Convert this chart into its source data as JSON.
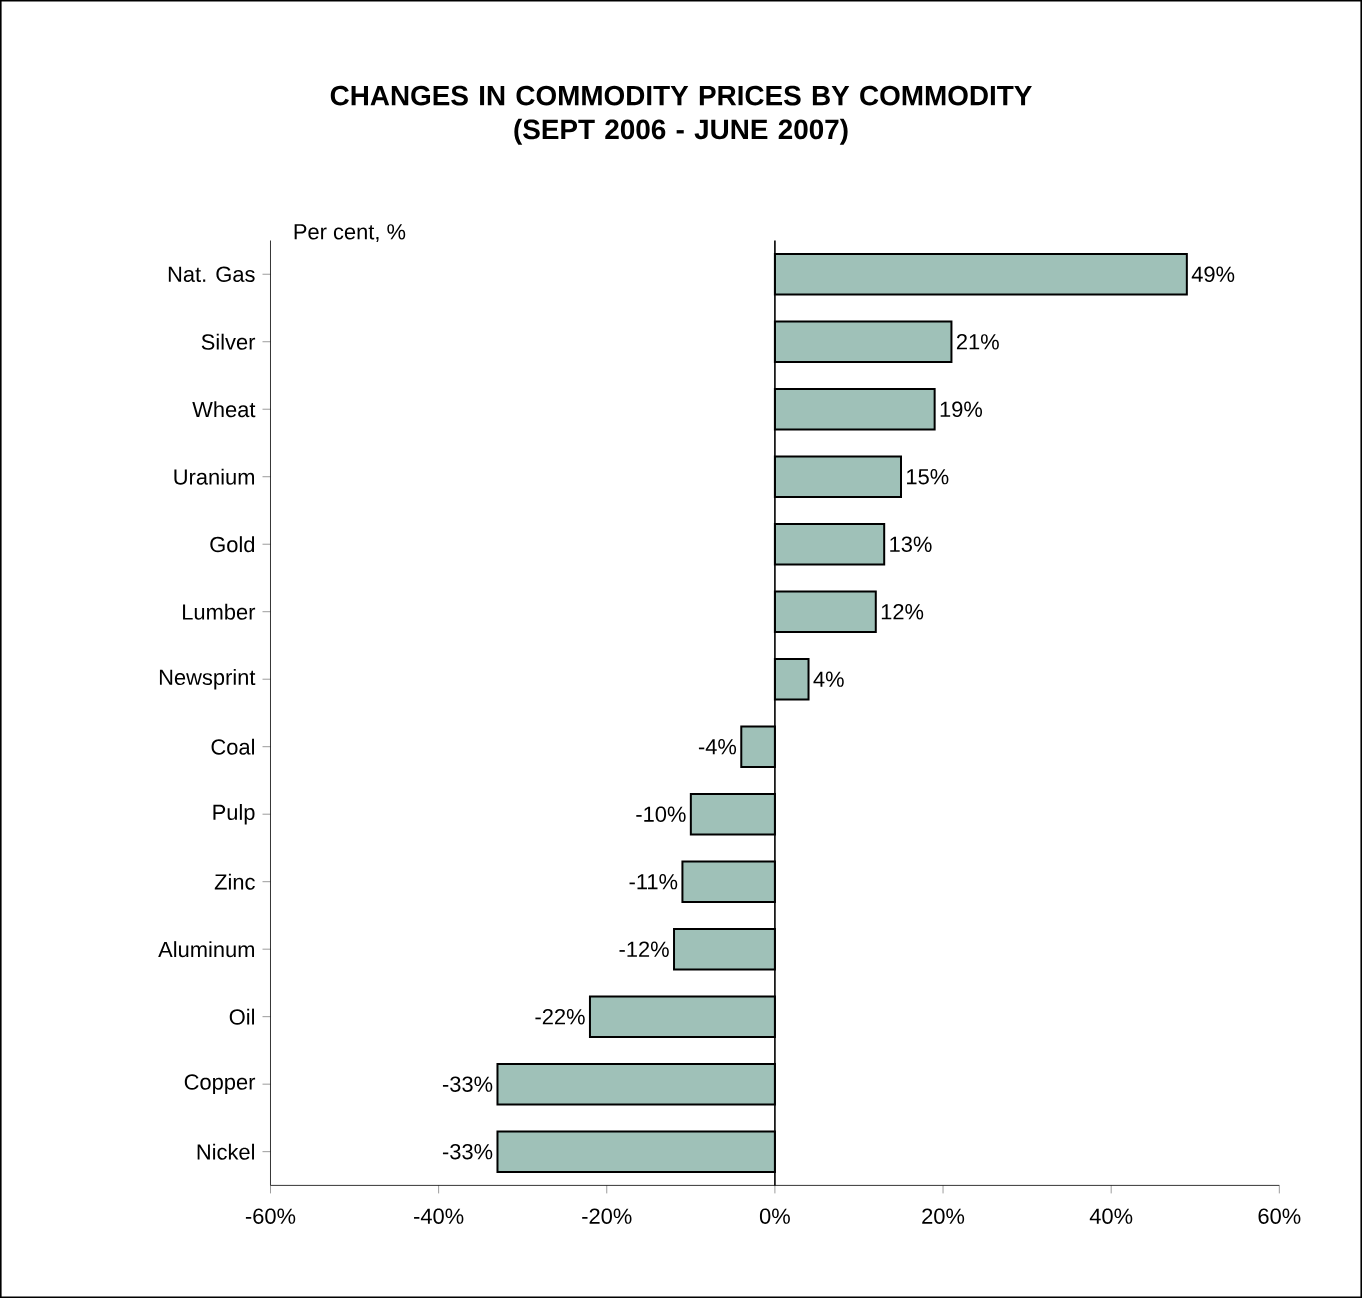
{
  "chart_data": {
    "type": "bar",
    "orientation": "horizontal",
    "title": "CHANGES IN COMMODITY PRICES BY COMMODITY\n(SEPT 2006 - JUNE 2007)",
    "annotations": [
      "Per cent, %"
    ],
    "categories": [
      "Nat. Gas",
      "Silver",
      "Wheat",
      "Uranium",
      "Gold",
      "Lumber",
      "Newsprint",
      "Coal",
      "Pulp",
      "Zinc",
      "Aluminum",
      "Oil",
      "Copper",
      "Nickel"
    ],
    "values": [
      49,
      21,
      19,
      15,
      13,
      12,
      4,
      -4,
      -10,
      -11,
      -12,
      -22,
      -33,
      -33
    ],
    "value_labels": [
      "49%",
      "21%",
      "19%",
      "15%",
      "13%",
      "12%",
      "4%",
      "-4%",
      "-10%",
      "-11%",
      "-12%",
      "-22%",
      "-33%",
      "-33%"
    ],
    "color": "#9fc1b8",
    "xlim": [
      -60,
      60
    ],
    "xticks": [
      {
        "value": -60,
        "label": "-60%"
      },
      {
        "value": -40,
        "label": "-40%"
      },
      {
        "value": -20,
        "label": "-20%"
      },
      {
        "value": 0,
        "label": "0%"
      },
      {
        "value": 20,
        "label": "20%"
      },
      {
        "value": 40,
        "label": "40%"
      },
      {
        "value": 60,
        "label": "60%"
      }
    ]
  }
}
